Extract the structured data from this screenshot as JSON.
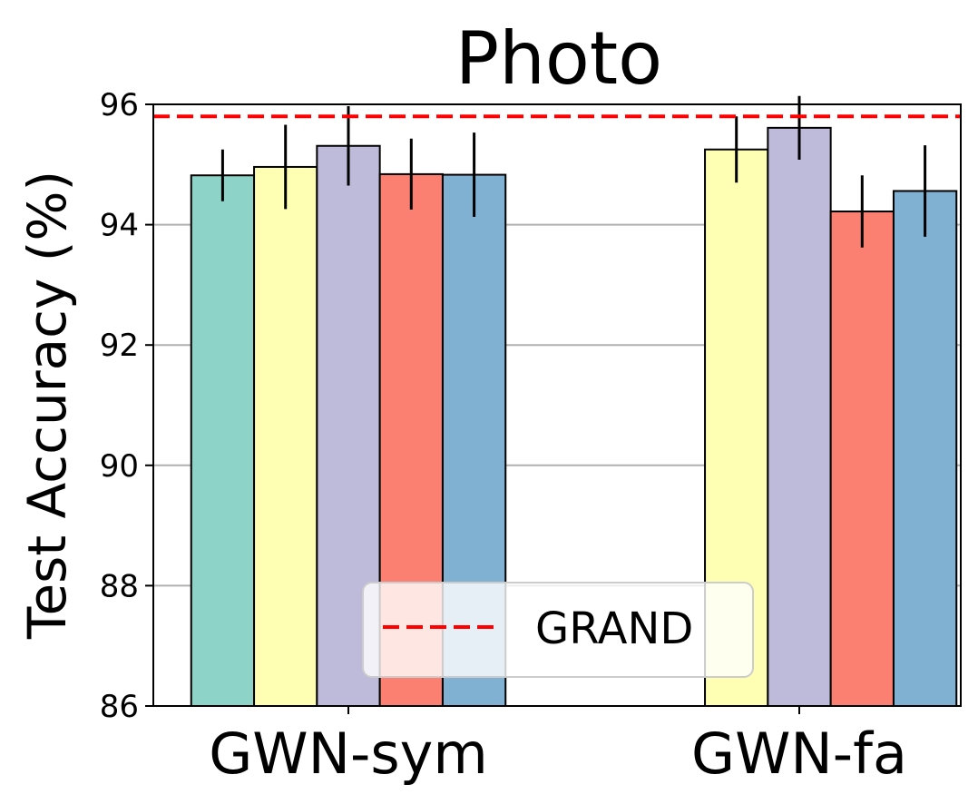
{
  "chart_data": {
    "type": "bar",
    "title": "Photo",
    "ylabel": "Test Accuracy (%)",
    "xlabel": "",
    "ylim": [
      86,
      96
    ],
    "yticks": [
      86,
      88,
      90,
      92,
      94,
      96
    ],
    "grid": "horizontal",
    "categories": [
      "GWN-sym",
      "GWN-fa"
    ],
    "series": [
      {
        "color": "#8dd3c7",
        "values": [
          94.82,
          null
        ],
        "errors": [
          0.43,
          null
        ]
      },
      {
        "color": "#ffffb3",
        "values": [
          94.96,
          95.25
        ],
        "errors": [
          0.7,
          0.55
        ]
      },
      {
        "color": "#bebada",
        "values": [
          95.31,
          95.61
        ],
        "errors": [
          0.66,
          0.53
        ]
      },
      {
        "color": "#fb8072",
        "values": [
          94.84,
          94.22
        ],
        "errors": [
          0.59,
          0.6
        ]
      },
      {
        "color": "#80b1d3",
        "values": [
          94.83,
          94.56
        ],
        "errors": [
          0.7,
          0.76
        ]
      }
    ],
    "reference_line": {
      "name": "GRAND",
      "value": 95.8,
      "color": "#ff0000",
      "style": "dashed"
    },
    "legend": {
      "position": "lower-center",
      "entries": [
        "GRAND"
      ]
    }
  }
}
